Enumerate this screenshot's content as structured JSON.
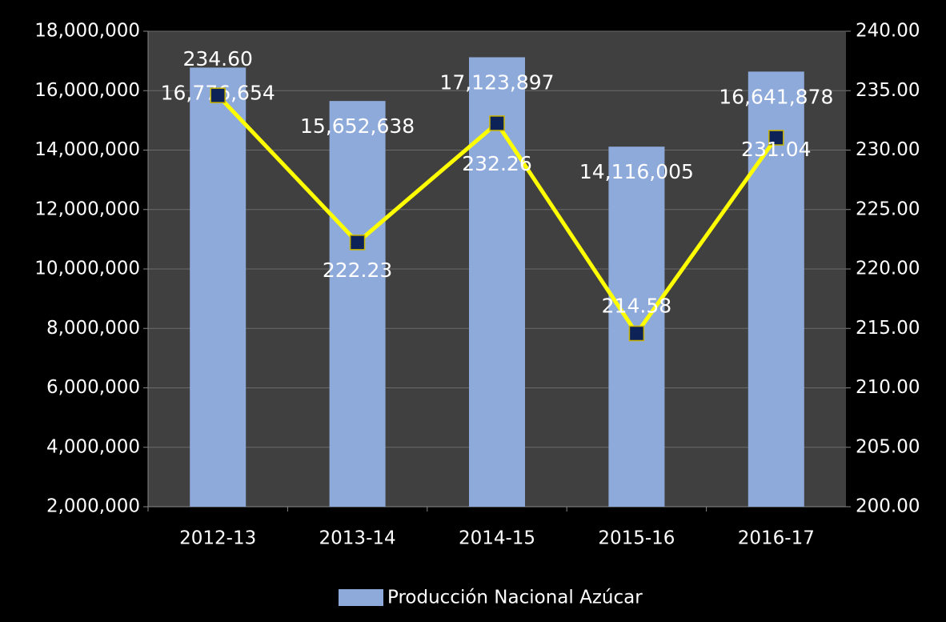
{
  "chart_data": {
    "type": "bar+line",
    "categories": [
      "2012-13",
      "2013-14",
      "2014-15",
      "2015-16",
      "2016-17"
    ],
    "series": [
      {
        "name": "Producción Nacional Azúcar",
        "type": "bar",
        "color": "#8eaadb",
        "axis": "y",
        "values": [
          16776654,
          15652638,
          17123897,
          14116005,
          16641878
        ],
        "value_labels": [
          "16,776,654",
          "15,652,638",
          "17,123,897",
          "14,116,005",
          "16,641,878"
        ]
      },
      {
        "type": "line",
        "color": "#ffff00",
        "marker_color": "#0d2257",
        "axis": "y2",
        "values": [
          234.6,
          222.23,
          232.26,
          214.58,
          231.04
        ],
        "value_labels": [
          "234.60",
          "222.23",
          "232.26",
          "214.58",
          "231.04"
        ]
      }
    ],
    "ylim": [
      2000000,
      18000000
    ],
    "yticks": [
      {
        "value": 2000000,
        "label": "2,000,000"
      },
      {
        "value": 4000000,
        "label": "4,000,000"
      },
      {
        "value": 6000000,
        "label": "6,000,000"
      },
      {
        "value": 8000000,
        "label": "8,000,000"
      },
      {
        "value": 10000000,
        "label": "10,000,000"
      },
      {
        "value": 12000000,
        "label": "12,000,000"
      },
      {
        "value": 14000000,
        "label": "14,000,000"
      },
      {
        "value": 16000000,
        "label": "16,000,000"
      },
      {
        "value": 18000000,
        "label": "18,000,000"
      }
    ],
    "y2lim": [
      200,
      240
    ],
    "y2ticks": [
      {
        "value": 200,
        "label": "200.00"
      },
      {
        "value": 205,
        "label": "205.00"
      },
      {
        "value": 210,
        "label": "210.00"
      },
      {
        "value": 215,
        "label": "215.00"
      },
      {
        "value": 220,
        "label": "220.00"
      },
      {
        "value": 225,
        "label": "225.00"
      },
      {
        "value": 230,
        "label": "230.00"
      },
      {
        "value": 235,
        "label": "235.00"
      },
      {
        "value": 240,
        "label": "240.00"
      }
    ],
    "grid": true,
    "legend": "bottom"
  }
}
